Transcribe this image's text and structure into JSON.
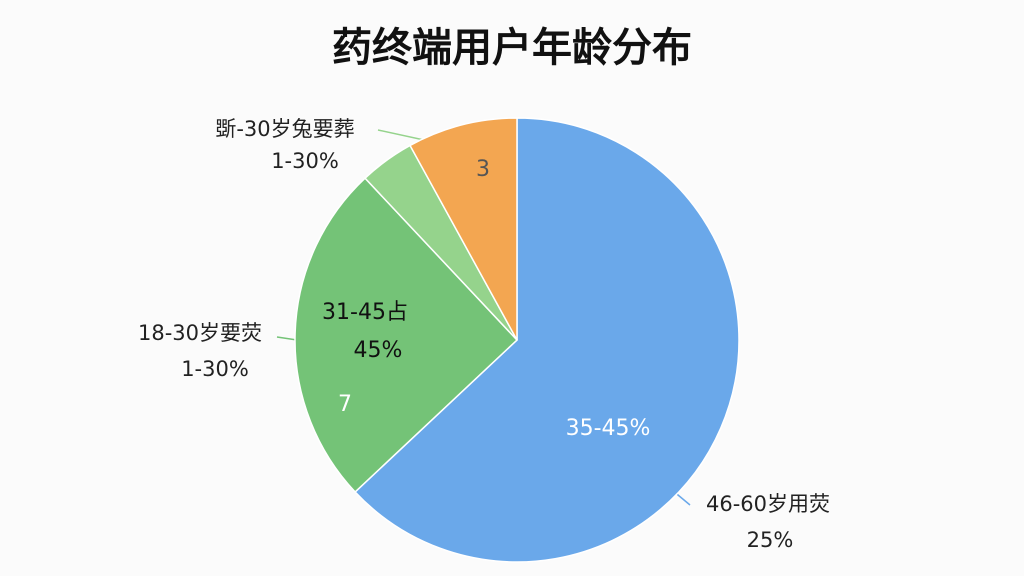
{
  "chart_data": {
    "type": "pie",
    "title": "药终端用户年龄分布",
    "categories": [
      "46-60岁用荧",
      "18-30岁要荧",
      null,
      "斲-30岁兔要葬"
    ],
    "sublabels": [
      "25%",
      "1-30%",
      null,
      "1-30%"
    ],
    "values": [
      63,
      25,
      4,
      8
    ],
    "colors": [
      "#6aa8ea",
      "#74c377",
      "#95d38c",
      "#f3a651"
    ],
    "inner_labels": [
      [
        "35-45%"
      ],
      [
        "31-45占",
        "45%",
        "7"
      ],
      [],
      [
        "3"
      ]
    ]
  }
}
